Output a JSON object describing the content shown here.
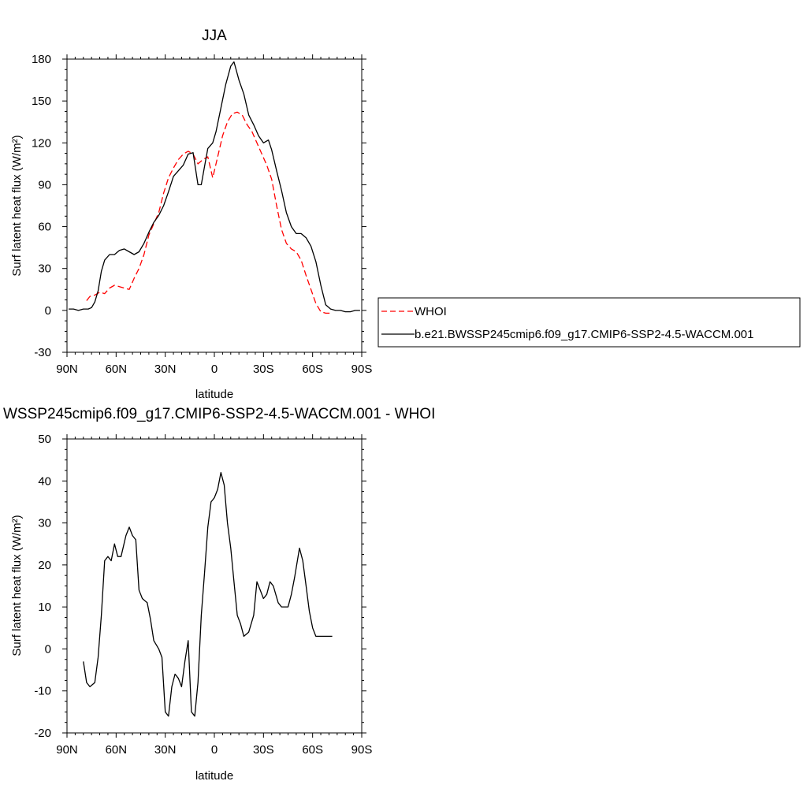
{
  "chart_data": [
    {
      "type": "line",
      "title": "JJA",
      "xlabel": "latitude",
      "ylabel": "Surf latent heat flux (W/m²)",
      "xlim": [
        -90,
        90
      ],
      "ylim": [
        -30,
        180
      ],
      "xticks": [
        -90,
        -60,
        -30,
        0,
        30,
        60,
        90
      ],
      "xtick_labels": [
        "90N",
        "60N",
        "30N",
        "0",
        "30S",
        "60S",
        "90S"
      ],
      "yticks": [
        -30,
        0,
        30,
        60,
        90,
        120,
        150,
        180
      ],
      "ytick_labels": [
        "-30",
        "0",
        "30",
        "60",
        "90",
        "120",
        "150",
        "180"
      ],
      "legend_position": "right",
      "series": [
        {
          "name": "WHOI",
          "color": "#ff0000",
          "dash": "dashed",
          "x": [
            -78,
            -76,
            -73,
            -70,
            -67,
            -64,
            -61,
            -58,
            -55,
            -52,
            -49,
            -46,
            -43,
            -40,
            -37,
            -34,
            -31,
            -28,
            -25,
            -22,
            -19,
            -16,
            -13,
            -10,
            -7,
            -4,
            -1,
            2,
            5,
            8,
            11,
            14,
            17,
            20,
            23,
            26,
            29,
            32,
            35,
            38,
            41,
            44,
            47,
            50,
            53,
            56,
            59,
            62,
            65,
            68,
            71
          ],
          "y": [
            7,
            10,
            11,
            13,
            12,
            16,
            18,
            17,
            16,
            15,
            23,
            30,
            40,
            54,
            62,
            70,
            84,
            95,
            102,
            108,
            112,
            114,
            112,
            105,
            108,
            110,
            95,
            110,
            125,
            135,
            141,
            142,
            140,
            133,
            128,
            120,
            112,
            104,
            94,
            75,
            58,
            48,
            44,
            42,
            36,
            25,
            15,
            5,
            -1,
            -2,
            -2
          ]
        },
        {
          "name": "b.e21.BWSSP245cmip6.f09_g17.CMIP6-SSP2-4.5-WACCM.001",
          "color": "#000000",
          "dash": "solid",
          "x": [
            -89,
            -86,
            -83,
            -80,
            -77,
            -75,
            -73,
            -71,
            -69,
            -67,
            -64,
            -61,
            -58,
            -55,
            -52,
            -49,
            -46,
            -43,
            -40,
            -37,
            -34,
            -31,
            -28,
            -25,
            -22,
            -19,
            -16,
            -13,
            -10,
            -8,
            -6,
            -4,
            -1,
            1,
            4,
            7,
            10,
            12,
            15,
            18,
            21,
            24,
            27,
            30,
            33,
            35,
            38,
            41,
            44,
            47,
            50,
            53,
            56,
            59,
            62,
            65,
            68,
            71,
            74,
            77,
            80,
            83,
            86,
            89
          ],
          "y": [
            1,
            1,
            0,
            1,
            1,
            2,
            6,
            14,
            28,
            36,
            40,
            40,
            43,
            44,
            42,
            40,
            42,
            48,
            56,
            63,
            68,
            75,
            85,
            96,
            100,
            104,
            112,
            113,
            90,
            90,
            103,
            116,
            120,
            128,
            145,
            162,
            175,
            178,
            165,
            155,
            140,
            133,
            125,
            120,
            122,
            115,
            100,
            86,
            70,
            60,
            55,
            55,
            52,
            46,
            35,
            18,
            4,
            1,
            0,
            0,
            -1,
            -1,
            0,
            0
          ]
        }
      ]
    },
    {
      "type": "line",
      "title": "WSSP245cmip6.f09_g17.CMIP6-SSP2-4.5-WACCM.001 - WHOI",
      "xlabel": "latitude",
      "ylabel": "Surf latent heat flux (W/m²)",
      "xlim": [
        -90,
        90
      ],
      "ylim": [
        -20,
        50
      ],
      "xticks": [
        -90,
        -60,
        -30,
        0,
        30,
        60,
        90
      ],
      "xtick_labels": [
        "90N",
        "60N",
        "30N",
        "0",
        "30S",
        "60S",
        "90S"
      ],
      "yticks": [
        -20,
        -10,
        0,
        10,
        20,
        30,
        40,
        50
      ],
      "ytick_labels": [
        "-20",
        "-10",
        "0",
        "10",
        "20",
        "30",
        "40",
        "50"
      ],
      "series": [
        {
          "color": "#000000",
          "dash": "solid",
          "x": [
            -80,
            -78,
            -76,
            -73,
            -71,
            -69,
            -67,
            -65,
            -63,
            -61,
            -59,
            -57,
            -54,
            -52,
            -50,
            -48,
            -46,
            -44,
            -41,
            -39,
            -37,
            -34,
            -32,
            -30,
            -28,
            -26,
            -24,
            -22,
            -20,
            -18,
            -16,
            -14,
            -12,
            -10,
            -8,
            -6,
            -4,
            -2,
            0,
            2,
            4,
            6,
            8,
            10,
            12,
            14,
            16,
            18,
            21,
            24,
            26,
            28,
            30,
            32,
            34,
            36,
            39,
            41,
            43,
            45,
            47,
            49,
            52,
            54,
            56,
            58,
            60,
            62,
            64,
            66,
            68,
            70,
            72
          ],
          "y": [
            -3,
            -8,
            -9,
            -8,
            -2,
            8,
            21,
            22,
            21,
            25,
            22,
            22,
            27,
            29,
            27,
            26,
            14,
            12,
            11,
            7,
            2,
            0,
            -2,
            -15,
            -16,
            -9,
            -6,
            -7,
            -9,
            -3,
            2,
            -15,
            -16,
            -8,
            8,
            18,
            29,
            35,
            36,
            38,
            42,
            39,
            30,
            24,
            16,
            8,
            6,
            3,
            4,
            8,
            16,
            14,
            12,
            13,
            16,
            15,
            11,
            10,
            10,
            10,
            13,
            17,
            24,
            21,
            15,
            9,
            5,
            3,
            3,
            3,
            3,
            3,
            3
          ]
        }
      ]
    }
  ]
}
